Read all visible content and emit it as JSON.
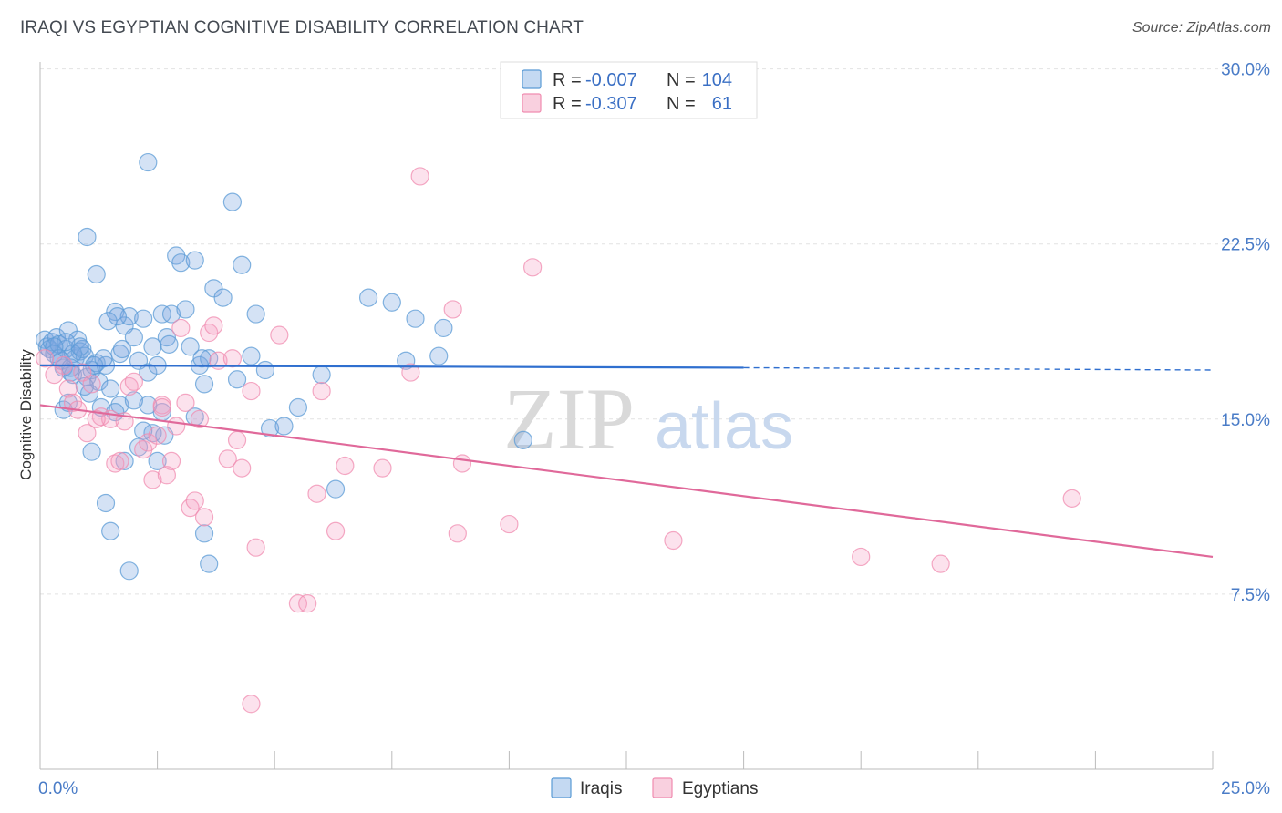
{
  "title": "IRAQI VS EGYPTIAN COGNITIVE DISABILITY CORRELATION CHART",
  "source": "Source: ZipAtlas.com",
  "watermark": {
    "zip": "ZIP",
    "atlas": "atlas"
  },
  "legend": {
    "rows": [
      {
        "r_label": "R =",
        "r_value": "-0.007",
        "n_label": "N =",
        "n_value": "104",
        "color": "#5b9bd5"
      },
      {
        "r_label": "R =",
        "r_value": "-0.307",
        "n_label": "N =",
        "n_value": "61",
        "color": "#f08cb0"
      }
    ]
  },
  "bottom_legend": [
    {
      "label": "Iraqis",
      "color": "#5b9bd5"
    },
    {
      "label": "Egyptians",
      "color": "#f08cb0"
    }
  ],
  "chart_data": {
    "type": "scatter",
    "title": "IRAQI VS EGYPTIAN COGNITIVE DISABILITY CORRELATION CHART",
    "xlabel": "",
    "ylabel": "Cognitive Disability",
    "xlim": [
      0,
      25
    ],
    "ylim": [
      0,
      31
    ],
    "x_tick_labels": [
      {
        "value": 0,
        "label": "0.0%"
      },
      {
        "value": 25,
        "label": "25.0%"
      }
    ],
    "y_tick_labels": [
      {
        "value": 7.5,
        "label": "7.5%"
      },
      {
        "value": 15,
        "label": "15.0%"
      },
      {
        "value": 22.5,
        "label": "22.5%"
      },
      {
        "value": 30,
        "label": "30.0%"
      }
    ],
    "grid": true,
    "legend_position": "top-center",
    "series": [
      {
        "name": "Iraqis",
        "color": "#5b9bd5",
        "points": [
          [
            0.1,
            18.4
          ],
          [
            0.15,
            18.1
          ],
          [
            0.2,
            18.0
          ],
          [
            0.25,
            18.3
          ],
          [
            0.3,
            17.8
          ],
          [
            0.35,
            18.5
          ],
          [
            0.4,
            18.2
          ],
          [
            0.45,
            17.5
          ],
          [
            0.5,
            17.2
          ],
          [
            0.55,
            18.0
          ],
          [
            0.6,
            18.8
          ],
          [
            0.65,
            17.0
          ],
          [
            0.7,
            16.9
          ],
          [
            0.75,
            17.6
          ],
          [
            0.8,
            18.4
          ],
          [
            0.85,
            17.9
          ],
          [
            0.9,
            18.0
          ],
          [
            0.95,
            17.7
          ],
          [
            1.0,
            16.8
          ],
          [
            1.05,
            16.1
          ],
          [
            1.1,
            17.1
          ],
          [
            1.2,
            17.4
          ],
          [
            1.25,
            16.6
          ],
          [
            1.3,
            15.5
          ],
          [
            0.5,
            15.4
          ],
          [
            0.6,
            15.7
          ],
          [
            1.1,
            13.6
          ],
          [
            1.4,
            17.3
          ],
          [
            1.5,
            16.3
          ],
          [
            1.6,
            19.6
          ],
          [
            1.7,
            17.8
          ],
          [
            1.8,
            19.0
          ],
          [
            1.9,
            19.4
          ],
          [
            2.0,
            18.5
          ],
          [
            2.1,
            17.5
          ],
          [
            2.2,
            19.3
          ],
          [
            2.3,
            17.0
          ],
          [
            2.4,
            18.1
          ],
          [
            2.5,
            17.3
          ],
          [
            2.6,
            19.5
          ],
          [
            2.7,
            18.5
          ],
          [
            2.8,
            19.5
          ],
          [
            2.9,
            22.0
          ],
          [
            3.0,
            21.7
          ],
          [
            3.1,
            19.7
          ],
          [
            3.2,
            18.1
          ],
          [
            3.3,
            15.1
          ],
          [
            3.4,
            17.3
          ],
          [
            3.5,
            16.5
          ],
          [
            3.6,
            17.6
          ],
          [
            3.7,
            20.6
          ],
          [
            3.9,
            20.2
          ],
          [
            4.2,
            16.7
          ],
          [
            4.3,
            21.6
          ],
          [
            4.5,
            17.7
          ],
          [
            4.6,
            19.5
          ],
          [
            4.8,
            17.1
          ],
          [
            4.9,
            14.6
          ],
          [
            5.2,
            14.7
          ],
          [
            5.5,
            15.5
          ],
          [
            6.0,
            16.9
          ],
          [
            6.3,
            12.0
          ],
          [
            7.0,
            20.2
          ],
          [
            7.5,
            20.0
          ],
          [
            7.8,
            17.5
          ],
          [
            8.0,
            19.3
          ],
          [
            8.5,
            17.7
          ],
          [
            8.6,
            18.9
          ],
          [
            10.3,
            14.1
          ],
          [
            2.3,
            26.0
          ],
          [
            4.1,
            24.3
          ],
          [
            1.0,
            22.8
          ],
          [
            1.2,
            21.2
          ],
          [
            1.4,
            11.4
          ],
          [
            1.5,
            10.2
          ],
          [
            1.9,
            8.5
          ],
          [
            2.4,
            14.4
          ],
          [
            2.5,
            13.2
          ],
          [
            2.6,
            15.3
          ],
          [
            3.5,
            10.1
          ],
          [
            3.6,
            8.8
          ],
          [
            2.1,
            13.8
          ],
          [
            2.2,
            14.5
          ],
          [
            1.7,
            15.6
          ],
          [
            1.6,
            15.3
          ],
          [
            2.3,
            15.6
          ],
          [
            1.8,
            13.2
          ],
          [
            2.0,
            15.8
          ],
          [
            0.95,
            16.4
          ],
          [
            1.15,
            17.3
          ],
          [
            1.35,
            17.6
          ],
          [
            1.45,
            19.2
          ],
          [
            1.65,
            19.4
          ],
          [
            0.7,
            17.8
          ],
          [
            0.85,
            18.1
          ],
          [
            2.65,
            14.3
          ],
          [
            2.75,
            18.2
          ],
          [
            3.3,
            21.8
          ],
          [
            0.4,
            17.6
          ],
          [
            3.45,
            17.6
          ],
          [
            0.55,
            18.3
          ],
          [
            1.75,
            18.0
          ],
          [
            0.3,
            18.1
          ],
          [
            0.65,
            17.2
          ]
        ],
        "trend": {
          "x": [
            0,
            15
          ],
          "y": [
            17.3,
            17.2
          ],
          "dashed_extension": {
            "x": [
              15,
              25
            ],
            "y": [
              17.2,
              17.1
            ]
          }
        }
      },
      {
        "name": "Egyptians",
        "color": "#f08cb0",
        "points": [
          [
            0.1,
            17.6
          ],
          [
            0.3,
            16.9
          ],
          [
            0.5,
            17.3
          ],
          [
            0.6,
            16.3
          ],
          [
            0.7,
            15.7
          ],
          [
            0.8,
            15.4
          ],
          [
            0.9,
            17.0
          ],
          [
            1.0,
            14.4
          ],
          [
            1.1,
            16.5
          ],
          [
            1.3,
            15.1
          ],
          [
            1.5,
            15.0
          ],
          [
            1.6,
            13.1
          ],
          [
            1.7,
            13.2
          ],
          [
            1.8,
            14.9
          ],
          [
            1.9,
            16.4
          ],
          [
            2.0,
            16.6
          ],
          [
            2.2,
            13.7
          ],
          [
            2.3,
            14.0
          ],
          [
            2.4,
            12.4
          ],
          [
            2.5,
            14.3
          ],
          [
            2.6,
            15.6
          ],
          [
            2.7,
            12.6
          ],
          [
            2.8,
            13.2
          ],
          [
            2.9,
            14.7
          ],
          [
            3.0,
            18.9
          ],
          [
            3.1,
            15.7
          ],
          [
            3.2,
            11.2
          ],
          [
            3.3,
            11.5
          ],
          [
            3.5,
            10.8
          ],
          [
            3.6,
            18.7
          ],
          [
            3.7,
            19.0
          ],
          [
            3.8,
            17.5
          ],
          [
            4.0,
            13.3
          ],
          [
            4.1,
            17.6
          ],
          [
            4.2,
            14.1
          ],
          [
            4.3,
            12.9
          ],
          [
            4.5,
            16.2
          ],
          [
            4.6,
            9.5
          ],
          [
            5.1,
            18.6
          ],
          [
            5.5,
            7.1
          ],
          [
            5.7,
            7.1
          ],
          [
            5.9,
            11.8
          ],
          [
            6.0,
            16.2
          ],
          [
            6.3,
            10.2
          ],
          [
            6.5,
            13.0
          ],
          [
            7.3,
            12.9
          ],
          [
            7.9,
            17.0
          ],
          [
            8.1,
            25.4
          ],
          [
            8.8,
            19.7
          ],
          [
            8.9,
            10.1
          ],
          [
            9.0,
            13.1
          ],
          [
            10.0,
            10.5
          ],
          [
            10.5,
            21.5
          ],
          [
            13.5,
            9.8
          ],
          [
            17.5,
            9.1
          ],
          [
            19.2,
            8.8
          ],
          [
            22.0,
            11.6
          ],
          [
            4.5,
            2.8
          ],
          [
            1.2,
            15.0
          ],
          [
            2.6,
            15.5
          ],
          [
            3.4,
            15.0
          ]
        ],
        "trend": {
          "x": [
            0,
            25
          ],
          "y": [
            15.6,
            9.1
          ]
        }
      }
    ]
  }
}
